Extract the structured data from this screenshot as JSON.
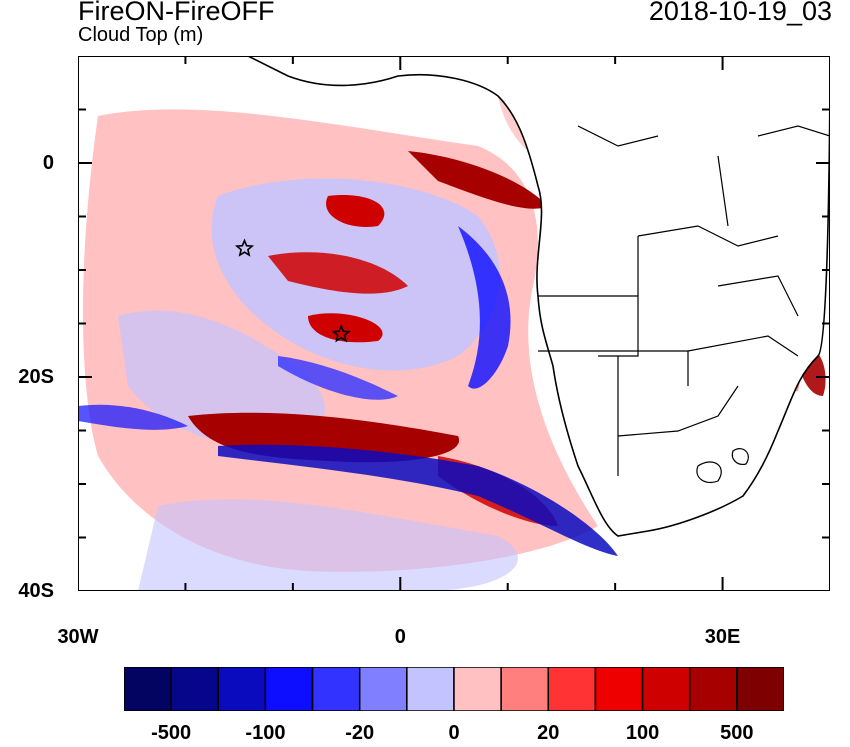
{
  "header": {
    "title": "FireON-FireOFF",
    "subtitle": "Cloud Top (m)",
    "datetime": "2018-10-19_03"
  },
  "map": {
    "lon_range": [
      -30,
      40
    ],
    "lat_range": [
      -40,
      10
    ],
    "y_ticks": [
      {
        "label": "0",
        "lat": 0
      },
      {
        "label": "20S",
        "lat": -20
      },
      {
        "label": "40S",
        "lat": -40
      }
    ],
    "x_ticks": [
      {
        "label": "30W",
        "lon": -30
      },
      {
        "label": "0",
        "lon": 0
      },
      {
        "label": "30E",
        "lon": 30
      }
    ],
    "markers": [
      {
        "type": "star",
        "lon": -14.5,
        "lat": -8
      },
      {
        "type": "star",
        "lon": -5.5,
        "lat": -16
      }
    ]
  },
  "colorbar": {
    "colors": [
      "#030361",
      "#06068a",
      "#0a0abf",
      "#0d0dff",
      "#3333ff",
      "#7f7fff",
      "#c3c3ff",
      "#ffc1c1",
      "#ff7f7f",
      "#ff3333",
      "#ef0000",
      "#cf0000",
      "#a60000",
      "#7f0000"
    ],
    "labels": [
      {
        "text": "-500",
        "after_box": 1
      },
      {
        "text": "-100",
        "after_box": 3
      },
      {
        "text": "-20",
        "after_box": 5
      },
      {
        "text": "0",
        "after_box": 7
      },
      {
        "text": "20",
        "after_box": 9
      },
      {
        "text": "100",
        "after_box": 11
      },
      {
        "text": "500",
        "after_box": 13
      }
    ]
  }
}
